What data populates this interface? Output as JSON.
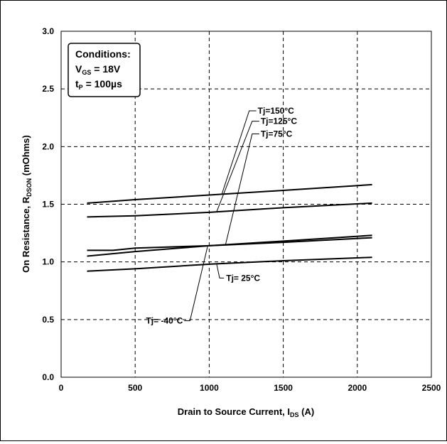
{
  "chart_data": {
    "type": "line",
    "xlabel": "Drain to Source Current, I",
    "xlabel_sub": "DS",
    "xlabel_unit": " (A)",
    "ylabel": "On Resistance, R",
    "ylabel_sub": "DSON",
    "ylabel_unit": " (mOhms)",
    "xlim": [
      0,
      2500
    ],
    "ylim": [
      0,
      3.0
    ],
    "x_ticks": [
      "0",
      "500",
      "1000",
      "1500",
      "2000",
      "2500"
    ],
    "y_ticks": [
      "0.0",
      "0.5",
      "1.0",
      "1.5",
      "2.0",
      "2.5",
      "3.0"
    ],
    "grid": true,
    "conditions": {
      "title": "Conditions:",
      "line1_main": "V",
      "line1_sub": "GS",
      "line1_val": " = 18V",
      "line2_main": "t",
      "line2_sub": "P",
      "line2_val": " = 100µs"
    },
    "series": [
      {
        "name": "Tj=150°C",
        "x": [
          175,
          500,
          1000,
          1500,
          2100
        ],
        "y": [
          1.51,
          1.54,
          1.58,
          1.62,
          1.67
        ]
      },
      {
        "name": "Tj=125°C",
        "x": [
          175,
          500,
          1000,
          1500,
          2100
        ],
        "y": [
          1.39,
          1.4,
          1.43,
          1.47,
          1.51
        ]
      },
      {
        "name": "Tj=75°C",
        "x": [
          175,
          500,
          1000,
          1500,
          2100
        ],
        "y": [
          1.05,
          1.09,
          1.14,
          1.18,
          1.23
        ]
      },
      {
        "name": "Tj= -40°C",
        "x": [
          175,
          350,
          500,
          1000,
          1500,
          2100
        ],
        "y": [
          1.1,
          1.1,
          1.12,
          1.14,
          1.17,
          1.21
        ]
      },
      {
        "name": "Tj= 25°C",
        "x": [
          175,
          500,
          1000,
          1500,
          2100
        ],
        "y": [
          0.92,
          0.94,
          0.98,
          1.01,
          1.04
        ]
      }
    ],
    "annotations": [
      {
        "series": "Tj=150°C",
        "text": "Tj=150°C"
      },
      {
        "series": "Tj=125°C",
        "text": "Tj=125°C"
      },
      {
        "series": "Tj=75°C",
        "text": "Tj=75°C"
      },
      {
        "series": "Tj= -40°C",
        "text": "Tj= -40°C"
      },
      {
        "series": "Tj= 25°C",
        "text": "Tj= 25°C"
      }
    ]
  }
}
